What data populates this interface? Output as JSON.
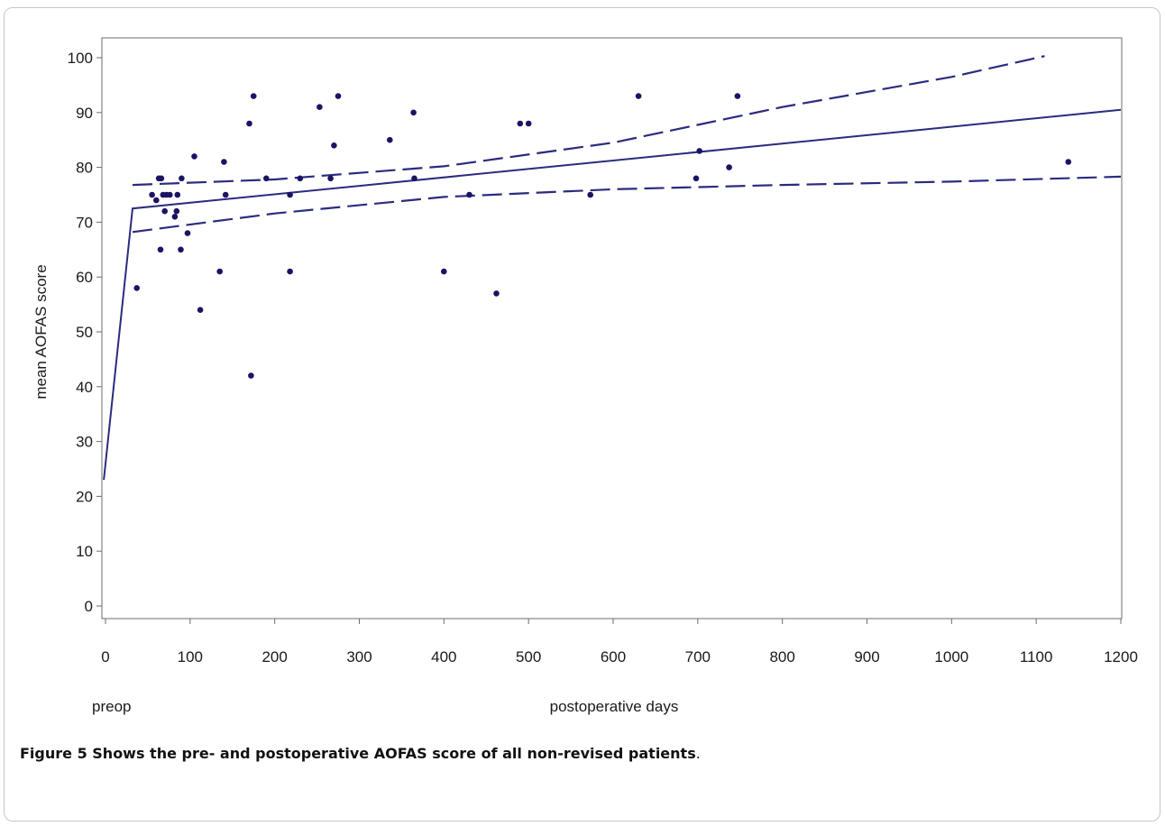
{
  "chart_data": {
    "type": "scatter",
    "xlabel": "postoperative days",
    "ylabel": "mean AOFAS score",
    "preop_label": "preop",
    "xlim": [
      0,
      1200
    ],
    "ylim": [
      0,
      100
    ],
    "x_ticks": [
      0,
      100,
      200,
      300,
      400,
      500,
      600,
      700,
      800,
      900,
      1000,
      1100,
      1200
    ],
    "y_ticks": [
      0,
      10,
      20,
      30,
      40,
      50,
      60,
      70,
      80,
      90,
      100
    ],
    "grid": false,
    "legend": "none",
    "colors": {
      "points": "#1b1464",
      "lines": "#2b2b7f"
    },
    "points": [
      {
        "x": 37,
        "y": 58
      },
      {
        "x": 55,
        "y": 75
      },
      {
        "x": 60,
        "y": 74
      },
      {
        "x": 63,
        "y": 78
      },
      {
        "x": 66,
        "y": 78
      },
      {
        "x": 65,
        "y": 65
      },
      {
        "x": 68,
        "y": 75
      },
      {
        "x": 70,
        "y": 72
      },
      {
        "x": 72,
        "y": 75
      },
      {
        "x": 76,
        "y": 75
      },
      {
        "x": 82,
        "y": 71
      },
      {
        "x": 84,
        "y": 72
      },
      {
        "x": 85,
        "y": 75
      },
      {
        "x": 89,
        "y": 65
      },
      {
        "x": 90,
        "y": 78
      },
      {
        "x": 97,
        "y": 68
      },
      {
        "x": 105,
        "y": 82
      },
      {
        "x": 112,
        "y": 54
      },
      {
        "x": 135,
        "y": 61
      },
      {
        "x": 140,
        "y": 81
      },
      {
        "x": 142,
        "y": 75
      },
      {
        "x": 170,
        "y": 88
      },
      {
        "x": 172,
        "y": 42
      },
      {
        "x": 175,
        "y": 93
      },
      {
        "x": 190,
        "y": 78
      },
      {
        "x": 218,
        "y": 75
      },
      {
        "x": 218,
        "y": 61
      },
      {
        "x": 230,
        "y": 78
      },
      {
        "x": 253,
        "y": 91
      },
      {
        "x": 266,
        "y": 78
      },
      {
        "x": 270,
        "y": 84
      },
      {
        "x": 275,
        "y": 93
      },
      {
        "x": 336,
        "y": 85
      },
      {
        "x": 364,
        "y": 90
      },
      {
        "x": 365,
        "y": 78
      },
      {
        "x": 400,
        "y": 61
      },
      {
        "x": 430,
        "y": 75
      },
      {
        "x": 462,
        "y": 57
      },
      {
        "x": 490,
        "y": 88
      },
      {
        "x": 500,
        "y": 88
      },
      {
        "x": 573,
        "y": 75
      },
      {
        "x": 630,
        "y": 93
      },
      {
        "x": 698,
        "y": 78
      },
      {
        "x": 702,
        "y": 83
      },
      {
        "x": 737,
        "y": 80
      },
      {
        "x": 747,
        "y": 93
      },
      {
        "x": 1138,
        "y": 81
      }
    ],
    "lines": [
      {
        "style": "solid",
        "points": [
          [
            -2,
            23
          ],
          [
            32,
            72.5
          ],
          [
            1200,
            90.5
          ]
        ]
      },
      {
        "style": "dashed",
        "points": [
          [
            32,
            76.8
          ],
          [
            200,
            77.8
          ],
          [
            400,
            80.2
          ],
          [
            600,
            84.5
          ],
          [
            800,
            91
          ],
          [
            1000,
            96.5
          ],
          [
            1110,
            100.3
          ]
        ]
      },
      {
        "style": "dashed",
        "points": [
          [
            32,
            68.2
          ],
          [
            200,
            71.6
          ],
          [
            400,
            74.6
          ],
          [
            600,
            76
          ],
          [
            800,
            76.8
          ],
          [
            1000,
            77.4
          ],
          [
            1200,
            78.3
          ]
        ]
      }
    ]
  },
  "caption": {
    "label": "Figure 5",
    "text": " Shows the pre- and postoperative AOFAS score of all non-revised patients",
    "end": "."
  }
}
